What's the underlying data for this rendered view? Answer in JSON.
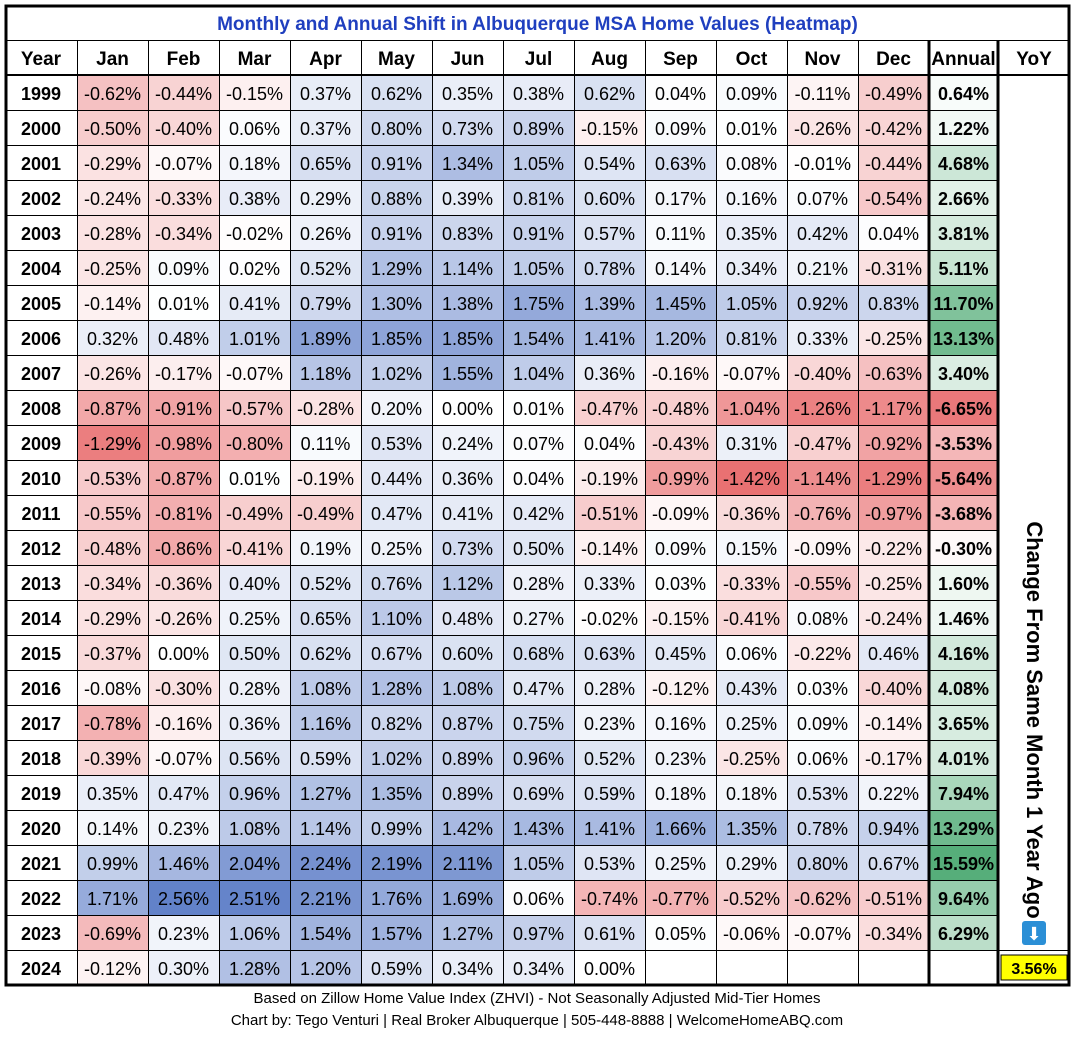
{
  "chart_data": {
    "type": "heatmap",
    "title": "Monthly and Annual Shift in Albuquerque MSA Home Values (Heatmap)",
    "headers": {
      "year": "Year",
      "months": [
        "Jan",
        "Feb",
        "Mar",
        "Apr",
        "May",
        "Jun",
        "Jul",
        "Aug",
        "Sep",
        "Oct",
        "Nov",
        "Dec"
      ],
      "annual": "Annual",
      "yoy": "YoY"
    },
    "years": [
      "1999",
      "2000",
      "2001",
      "2002",
      "2003",
      "2004",
      "2005",
      "2006",
      "2007",
      "2008",
      "2009",
      "2010",
      "2011",
      "2012",
      "2013",
      "2014",
      "2015",
      "2016",
      "2017",
      "2018",
      "2019",
      "2020",
      "2021",
      "2022",
      "2023",
      "2024"
    ],
    "values": [
      [
        -0.62,
        -0.44,
        -0.15,
        0.37,
        0.62,
        0.35,
        0.38,
        0.62,
        0.04,
        0.09,
        -0.11,
        -0.49
      ],
      [
        -0.5,
        -0.4,
        0.06,
        0.37,
        0.8,
        0.73,
        0.89,
        -0.15,
        0.09,
        0.01,
        -0.26,
        -0.42
      ],
      [
        -0.29,
        -0.07,
        0.18,
        0.65,
        0.91,
        1.34,
        1.05,
        0.54,
        0.63,
        0.08,
        -0.01,
        -0.44
      ],
      [
        -0.24,
        -0.33,
        0.38,
        0.29,
        0.88,
        0.39,
        0.81,
        0.6,
        0.17,
        0.16,
        0.07,
        -0.54
      ],
      [
        -0.28,
        -0.34,
        -0.02,
        0.26,
        0.91,
        0.83,
        0.91,
        0.57,
        0.11,
        0.35,
        0.42,
        0.04
      ],
      [
        -0.25,
        0.09,
        0.02,
        0.52,
        1.29,
        1.14,
        1.05,
        0.78,
        0.14,
        0.34,
        0.21,
        -0.31
      ],
      [
        -0.14,
        0.01,
        0.41,
        0.79,
        1.3,
        1.38,
        1.75,
        1.39,
        1.45,
        1.05,
        0.92,
        0.83
      ],
      [
        0.32,
        0.48,
        1.01,
        1.89,
        1.85,
        1.85,
        1.54,
        1.41,
        1.2,
        0.81,
        0.33,
        -0.25
      ],
      [
        -0.26,
        -0.17,
        -0.07,
        1.18,
        1.02,
        1.55,
        1.04,
        0.36,
        -0.16,
        -0.07,
        -0.4,
        -0.63
      ],
      [
        -0.87,
        -0.91,
        -0.57,
        -0.28,
        0.2,
        0.0,
        0.01,
        -0.47,
        -0.48,
        -1.04,
        -1.26,
        -1.17
      ],
      [
        -1.29,
        -0.98,
        -0.8,
        0.11,
        0.53,
        0.24,
        0.07,
        0.04,
        -0.43,
        0.31,
        -0.47,
        -0.92
      ],
      [
        -0.53,
        -0.87,
        0.01,
        -0.19,
        0.44,
        0.36,
        0.04,
        -0.19,
        -0.99,
        -1.42,
        -1.14,
        -1.29
      ],
      [
        -0.55,
        -0.81,
        -0.49,
        -0.49,
        0.47,
        0.41,
        0.42,
        -0.51,
        -0.09,
        -0.36,
        -0.76,
        -0.97
      ],
      [
        -0.48,
        -0.86,
        -0.41,
        0.19,
        0.25,
        0.73,
        0.5,
        -0.14,
        0.09,
        0.15,
        -0.09,
        -0.22
      ],
      [
        -0.34,
        -0.36,
        0.4,
        0.52,
        0.76,
        1.12,
        0.28,
        0.33,
        0.03,
        -0.33,
        -0.55,
        -0.25
      ],
      [
        -0.29,
        -0.26,
        0.25,
        0.65,
        1.1,
        0.48,
        0.27,
        -0.02,
        -0.15,
        -0.41,
        0.08,
        -0.24
      ],
      [
        -0.37,
        0.0,
        0.5,
        0.62,
        0.67,
        0.6,
        0.68,
        0.63,
        0.45,
        0.06,
        -0.22,
        0.46
      ],
      [
        -0.08,
        -0.3,
        0.28,
        1.08,
        1.28,
        1.08,
        0.47,
        0.28,
        -0.12,
        0.43,
        0.03,
        -0.4
      ],
      [
        -0.78,
        -0.16,
        0.36,
        1.16,
        0.82,
        0.87,
        0.75,
        0.23,
        0.16,
        0.25,
        0.09,
        -0.14
      ],
      [
        -0.39,
        -0.07,
        0.56,
        0.59,
        1.02,
        0.89,
        0.96,
        0.52,
        0.23,
        -0.25,
        0.06,
        -0.17
      ],
      [
        0.35,
        0.47,
        0.96,
        1.27,
        1.35,
        0.89,
        0.69,
        0.59,
        0.18,
        0.18,
        0.53,
        0.22
      ],
      [
        0.14,
        0.23,
        1.08,
        1.14,
        0.99,
        1.42,
        1.43,
        1.41,
        1.66,
        1.35,
        0.78,
        0.94
      ],
      [
        0.99,
        1.46,
        2.04,
        2.24,
        2.19,
        2.11,
        1.05,
        0.53,
        0.25,
        0.29,
        0.8,
        0.67
      ],
      [
        1.71,
        2.56,
        2.51,
        2.21,
        1.76,
        1.69,
        0.06,
        -0.74,
        -0.77,
        -0.52,
        -0.62,
        -0.51
      ],
      [
        -0.69,
        0.23,
        1.06,
        1.54,
        1.57,
        1.27,
        0.97,
        0.61,
        0.05,
        -0.06,
        -0.07,
        -0.34
      ],
      [
        -0.12,
        0.3,
        1.28,
        1.2,
        0.59,
        0.34,
        0.34,
        0.0,
        null,
        null,
        null,
        null
      ]
    ],
    "annual": [
      0.64,
      1.22,
      4.68,
      2.66,
      3.81,
      5.11,
      11.7,
      13.13,
      3.4,
      -6.65,
      -3.53,
      -5.64,
      -3.68,
      -0.3,
      1.6,
      1.46,
      4.16,
      4.08,
      3.65,
      4.01,
      7.94,
      13.29,
      15.59,
      9.64,
      6.29,
      null
    ],
    "yoy_label": "Change From Same Month 1 Year Ago",
    "yoy_arrow_icon": "down-arrow-icon",
    "yoy_arrow_glyph": "⬇",
    "yoy_value": "3.56%",
    "colors": {
      "negative": "#e8696b",
      "positive_month": "#5a7bc6",
      "positive_annual": "#4daa73",
      "title": "#1f3fbf",
      "yoy_highlight": "#ffff00",
      "neutral": "#ffffff"
    }
  },
  "footer": {
    "line1": "Based on Zillow Home Value Index (ZHVI) - Not Seasonally Adjusted Mid-Tier Homes",
    "line2": "Chart by: Tego Venturi | Real Broker Albuquerque | 505-448-8888 | WelcomeHomeABQ.com"
  }
}
